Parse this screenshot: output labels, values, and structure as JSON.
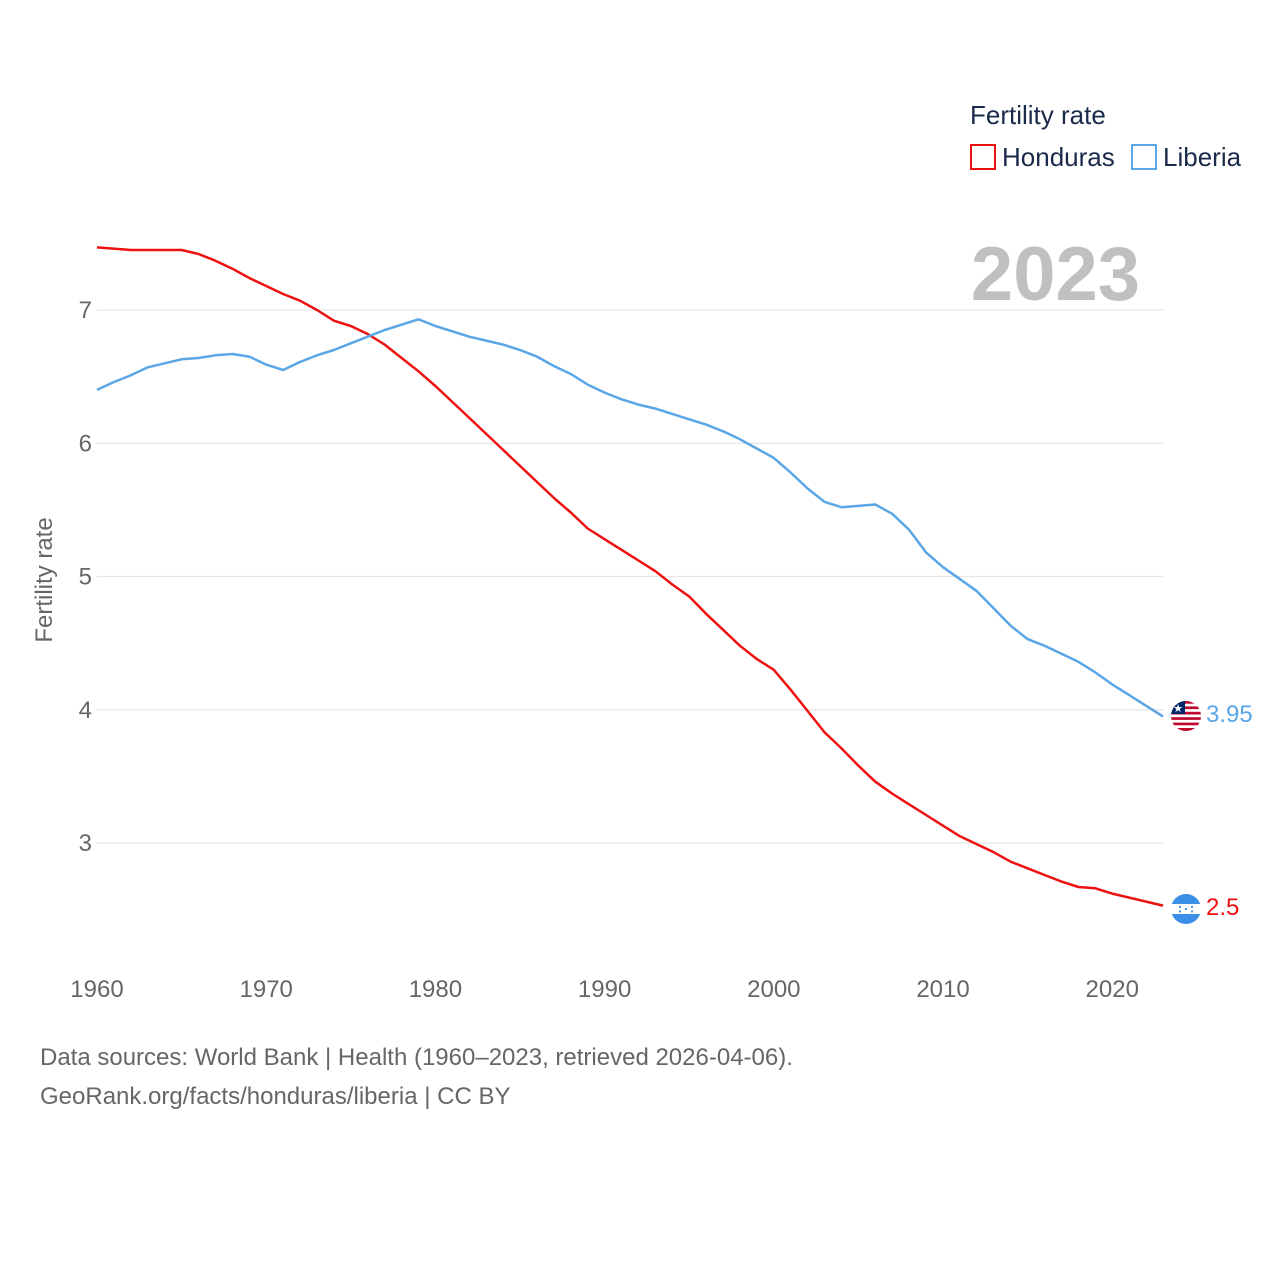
{
  "chart_data": {
    "type": "line",
    "title": "",
    "year_label": "2023",
    "xlabel": "",
    "ylabel": "Fertility rate",
    "xlim": [
      1960,
      2023
    ],
    "ylim": [
      2.1,
      7.6
    ],
    "x_ticks": [
      1960,
      1970,
      1980,
      1990,
      2000,
      2010,
      2020
    ],
    "y_ticks": [
      3,
      4,
      5,
      6,
      7
    ],
    "grid": true,
    "legend": {
      "title": "Fertility rate",
      "position": "top-right",
      "entries": [
        "Honduras",
        "Liberia"
      ]
    },
    "series": [
      {
        "name": "Honduras",
        "color": "#ee1111",
        "end_label": "2.5",
        "flag": "honduras-flag",
        "x": [
          1960,
          1962,
          1965,
          1966,
          1967,
          1968,
          1969,
          1970,
          1971,
          1972,
          1973,
          1974,
          1975,
          1976,
          1977,
          1978,
          1979,
          1980,
          1981,
          1982,
          1983,
          1984,
          1985,
          1986,
          1987,
          1988,
          1989,
          1990,
          1991,
          1992,
          1993,
          1994,
          1995,
          1996,
          1997,
          1998,
          1999,
          2000,
          2001,
          2002,
          2003,
          2004,
          2005,
          2006,
          2007,
          2008,
          2009,
          2010,
          2011,
          2012,
          2013,
          2014,
          2015,
          2016,
          2017,
          2018,
          2019,
          2020,
          2021,
          2022,
          2023
        ],
        "values": [
          7.47,
          7.45,
          7.45,
          7.42,
          7.37,
          7.31,
          7.24,
          7.18,
          7.12,
          7.07,
          7.0,
          6.92,
          6.88,
          6.82,
          6.74,
          6.64,
          6.54,
          6.43,
          6.31,
          6.19,
          6.07,
          5.95,
          5.83,
          5.71,
          5.59,
          5.48,
          5.36,
          5.28,
          5.2,
          5.12,
          5.04,
          4.94,
          4.85,
          4.72,
          4.6,
          4.48,
          4.38,
          4.3,
          4.15,
          3.99,
          3.83,
          3.71,
          3.58,
          3.46,
          3.37,
          3.29,
          3.21,
          3.13,
          3.05,
          2.99,
          2.93,
          2.86,
          2.81,
          2.76,
          2.71,
          2.67,
          2.66,
          2.62,
          2.59,
          2.56,
          2.53
        ]
      },
      {
        "name": "Liberia",
        "color": "#5aa6e6",
        "end_label": "3.95",
        "flag": "liberia-flag",
        "x": [
          1960,
          1961,
          1962,
          1963,
          1964,
          1965,
          1966,
          1967,
          1968,
          1969,
          1970,
          1971,
          1972,
          1973,
          1974,
          1975,
          1976,
          1977,
          1978,
          1979,
          1980,
          1981,
          1982,
          1983,
          1984,
          1985,
          1986,
          1987,
          1988,
          1989,
          1990,
          1991,
          1992,
          1993,
          1994,
          1995,
          1996,
          1997,
          1998,
          1999,
          2000,
          2001,
          2002,
          2003,
          2004,
          2005,
          2006,
          2007,
          2008,
          2009,
          2010,
          2011,
          2012,
          2013,
          2014,
          2015,
          2016,
          2017,
          2018,
          2019,
          2020,
          2021,
          2022,
          2023
        ],
        "values": [
          6.4,
          6.46,
          6.51,
          6.57,
          6.6,
          6.63,
          6.64,
          6.66,
          6.67,
          6.65,
          6.59,
          6.55,
          6.61,
          6.66,
          6.7,
          6.75,
          6.8,
          6.85,
          6.89,
          6.93,
          6.88,
          6.84,
          6.8,
          6.77,
          6.74,
          6.7,
          6.65,
          6.58,
          6.52,
          6.44,
          6.38,
          6.33,
          6.29,
          6.26,
          6.22,
          6.18,
          6.14,
          6.09,
          6.03,
          5.96,
          5.89,
          5.78,
          5.66,
          5.56,
          5.52,
          5.53,
          5.54,
          5.47,
          5.35,
          5.18,
          5.07,
          4.98,
          4.89,
          4.76,
          4.63,
          4.53,
          4.48,
          4.42,
          4.36,
          4.28,
          4.19,
          4.11,
          4.03,
          3.95
        ]
      }
    ]
  },
  "footer": {
    "line1": "Data sources: World Bank | Health (1960–2023, retrieved 2026-04-06).",
    "line2": "GeoRank.org/facts/honduras/liberia | CC BY"
  }
}
